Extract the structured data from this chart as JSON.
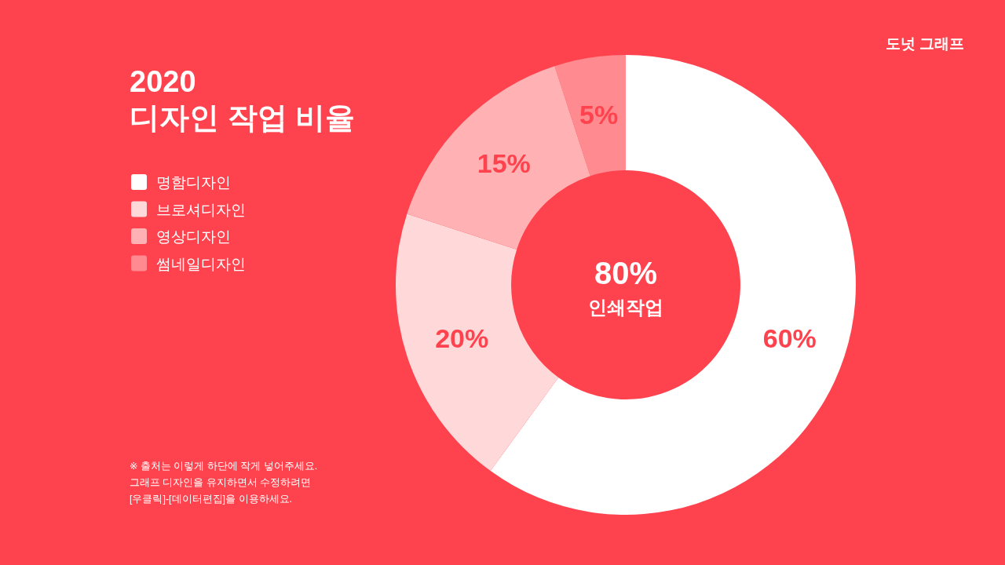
{
  "chart_data": {
    "type": "donut",
    "title": "2020\n디자인 작업 비율",
    "categories": [
      "명함디자인",
      "브로셔디자인",
      "영상디자인",
      "썸네일디자인"
    ],
    "values": [
      60,
      20,
      15,
      5
    ],
    "colors": [
      "#ffffff",
      "#ffd9da",
      "#ffb1b4",
      "#ff8a90"
    ],
    "value_labels": [
      "60%",
      "20%",
      "15%",
      "5%"
    ],
    "legend": "left",
    "annotations": [
      "도넛 그래프",
      "80%\n인쇄작업",
      "※ 출처는 이렇게 하단에 작게 넣어주세요.\n그래프 디자인을 유지하면서 수정하려면\n[우클릭]-[데이터편집]을 이용하세요."
    ]
  }
}
